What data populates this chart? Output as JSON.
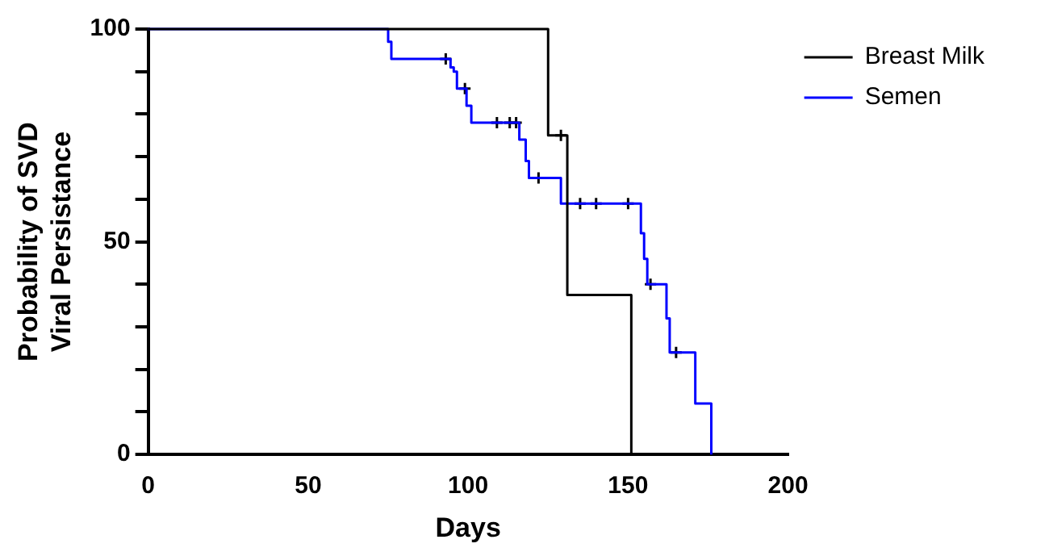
{
  "chart_data": {
    "type": "step",
    "xlabel": "Days",
    "ylabel": "Probability of SVD\nViral Persistance",
    "xlim": [
      0,
      200
    ],
    "xticks": [
      0,
      50,
      100,
      150,
      200
    ],
    "ylim": [
      0,
      100
    ],
    "yticks": [
      0,
      {
        "value": 10,
        "label": null
      },
      {
        "value": 20,
        "label": null
      },
      {
        "value": 30,
        "label": null
      },
      {
        "value": 40,
        "label": null
      },
      50,
      {
        "value": 60,
        "label": null
      },
      {
        "value": 70,
        "label": null
      },
      {
        "value": 80,
        "label": null
      },
      {
        "value": 90,
        "label": null
      },
      100
    ],
    "grid": false,
    "legend": "top right",
    "line_style": "solid",
    "series": [
      {
        "name": "Breast Milk",
        "color": "#000000",
        "x": [
          0,
          125,
          131,
          151
        ],
        "values": [
          100,
          75,
          37.5,
          0
        ]
      },
      {
        "name": "Semen",
        "color": "#0000ff",
        "x": [
          0,
          75,
          76,
          94.5,
          95.5,
          96.5,
          99.5,
          101,
          116,
          118,
          119,
          129,
          154,
          155,
          156,
          162,
          163,
          171,
          176
        ],
        "values": [
          100,
          97,
          93,
          91,
          90,
          86,
          82,
          78,
          74,
          69,
          65,
          59,
          52,
          46,
          40,
          32,
          24,
          12,
          0
        ]
      },
      {
        "type": "scatter",
        "color": "#000000",
        "marker": "cross",
        "x": [
          129,
          93,
          99,
          109,
          113,
          115,
          122,
          135,
          140,
          150,
          157,
          165
        ],
        "values": [
          75,
          93,
          86,
          78,
          78,
          78,
          65,
          59,
          59,
          59,
          40,
          24
        ]
      }
    ]
  }
}
